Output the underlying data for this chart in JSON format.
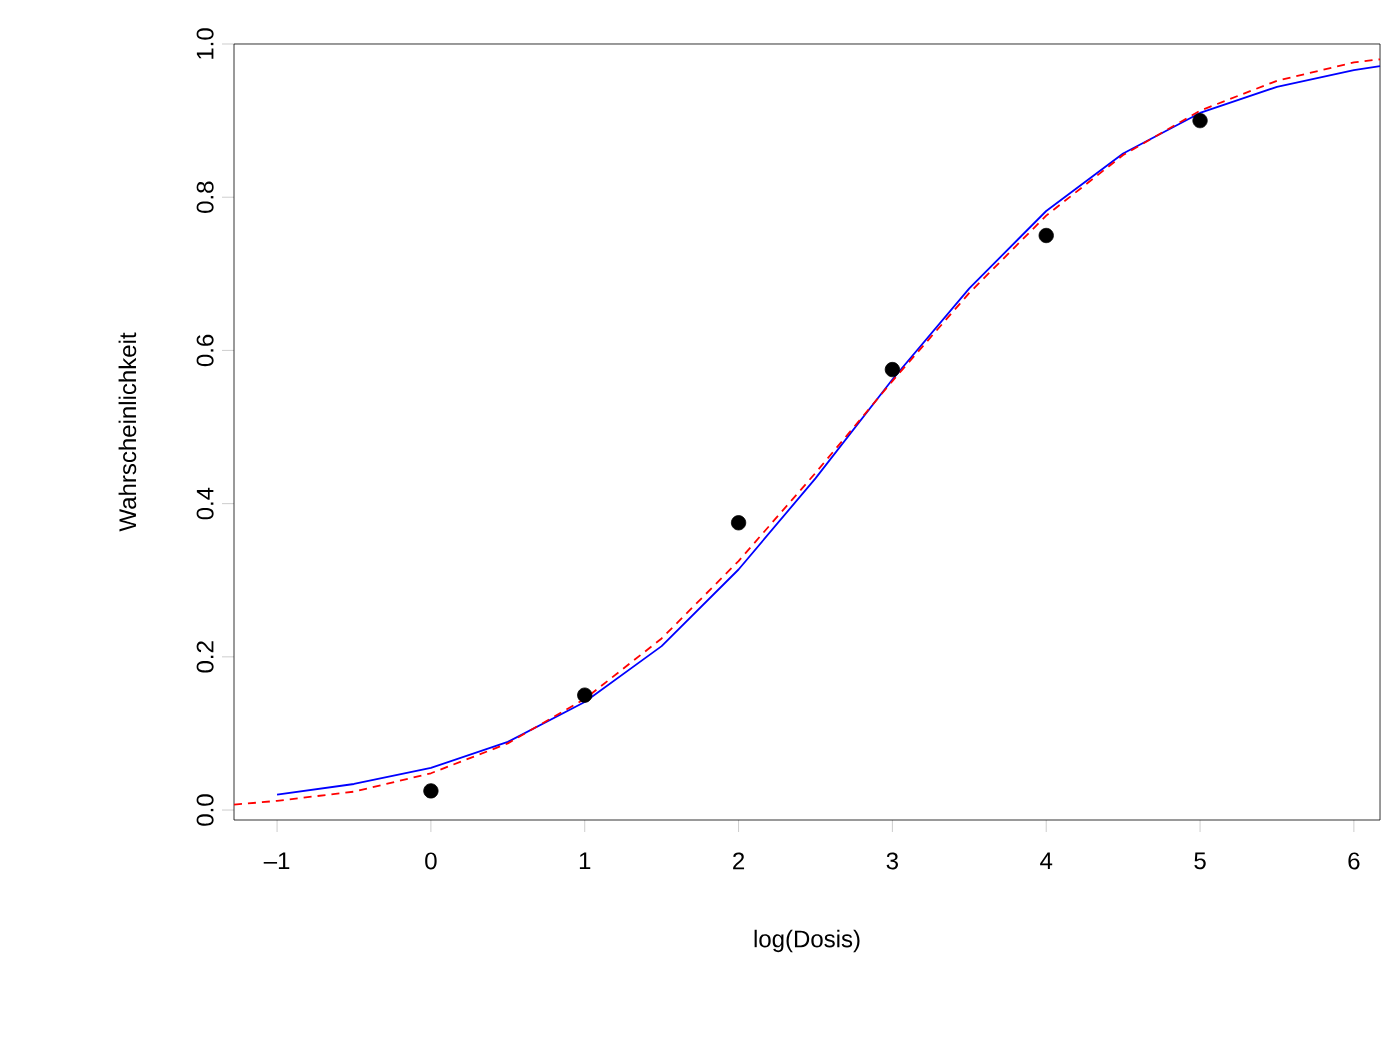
{
  "chart_data": {
    "type": "scatter",
    "xlabel": "log(Dosis)",
    "ylabel": "Wahrscheinlichkeit",
    "xlim": [
      -1.28,
      6.17
    ],
    "ylim": [
      -0.013,
      1.0
    ],
    "xticks": [
      {
        "value": -1,
        "label": "–1"
      },
      0,
      1,
      2,
      3,
      4,
      5,
      6
    ],
    "yticks": [
      {
        "value": 0,
        "label": "0.0"
      },
      0.2,
      0.4,
      0.6,
      0.8,
      {
        "value": 1,
        "label": "1.0"
      }
    ],
    "series": [
      {
        "type": "line",
        "color": "#0000ff",
        "line_style": "solid",
        "marker": "none",
        "x": [
          -1,
          -0.5,
          0,
          0.5,
          1,
          1.5,
          2,
          2.5,
          3,
          3.5,
          4,
          4.5,
          5,
          5.5,
          6,
          6.17
        ],
        "values": [
          0.02,
          0.034,
          0.055,
          0.089,
          0.141,
          0.214,
          0.314,
          0.433,
          0.562,
          0.681,
          0.782,
          0.857,
          0.91,
          0.944,
          0.966,
          0.971
        ]
      },
      {
        "type": "line",
        "color": "#ff0000",
        "line_style": "dashed",
        "marker": "none",
        "x": [
          -1.28,
          -1,
          -0.5,
          0,
          0.5,
          1,
          1.5,
          2,
          2.5,
          3,
          3.5,
          4,
          4.5,
          5,
          5.5,
          6,
          6.17
        ],
        "values": [
          0.007,
          0.012,
          0.024,
          0.048,
          0.087,
          0.145,
          0.224,
          0.325,
          0.44,
          0.56,
          0.675,
          0.776,
          0.855,
          0.913,
          0.952,
          0.976,
          0.98
        ]
      },
      {
        "color": "#000000",
        "marker": "circle",
        "x": [
          0,
          1,
          2,
          3,
          4,
          5
        ],
        "values": [
          0.025,
          0.15,
          0.375,
          0.575,
          0.75,
          0.9
        ]
      }
    ]
  }
}
